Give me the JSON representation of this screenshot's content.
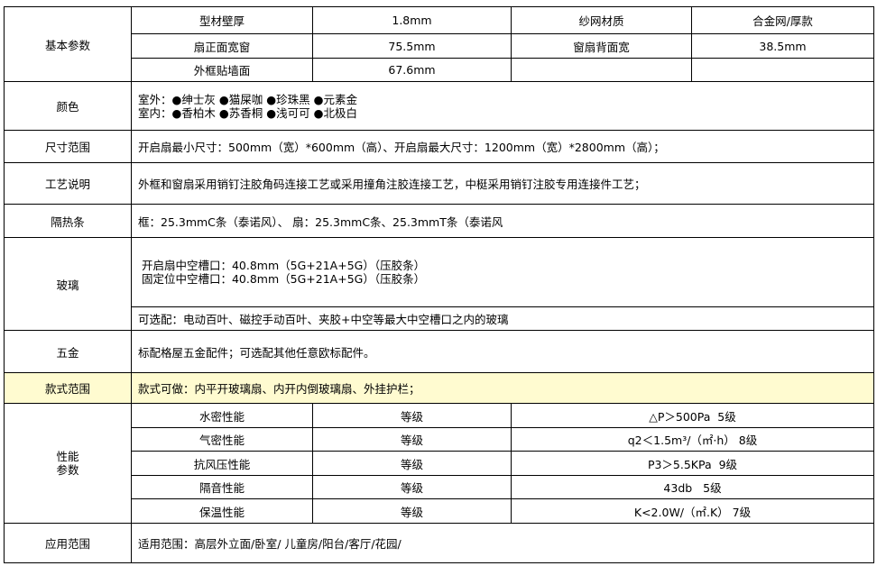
{
  "basic": {
    "label": "基本参数",
    "rows": [
      [
        "型材壁厚",
        "1.8mm",
        "纱网材质",
        "合金网/厚款"
      ],
      [
        "扇正面宽窗",
        "75.5mm",
        "窗扇背面宽",
        "38.5mm"
      ],
      [
        "外框贴墙面",
        "67.6mm",
        "",
        ""
      ]
    ]
  },
  "color": {
    "label": "颜色",
    "outdoor": "室外：●绅士灰  ●猫屎咖  ●珍珠黑  ●元素金",
    "indoor": "室内：●香柏木  ●苏香桐  ●浅可可  ●北极白"
  },
  "size": {
    "label": "尺寸范围",
    "value": "开启扇最小尺寸：500mm（宽）*600mm（高）、开启扇最大尺寸：1200mm（宽）*2800mm（高）；"
  },
  "craft": {
    "label": "工艺说明",
    "value": "外框和窗扇采用销钉注胶角码连接工艺或采用撞角注胶连接工艺，中梃采用销钉注胶专用连接件工艺；"
  },
  "strip": {
    "label": "隔热条",
    "value": "框：25.3mmC条（泰诺风）、 扇：25.3mmC条、25.3mmT条（泰诺风"
  },
  "glass": {
    "label": "玻璃",
    "line1": " 开启扇中空槽口：40.8mm（5G+21A+5G）（压胶条）",
    "line2": " 固定位中空槽口：40.8mm（5G+21A+5G）（压胶条）",
    "optional": "可选配：电动百叶、磁控手动百叶、夹胶+中空等最大中空槽口之内的玻璃"
  },
  "hardware": {
    "label": "五金",
    "value": "标配格屋五金配件；可选配其他任意欧标配件。"
  },
  "style": {
    "label": "款式范围",
    "value": "款式可做：内平开玻璃扇、内开内倒玻璃扇、外挂护栏；",
    "highlight": "#fffbd0"
  },
  "performance": {
    "label1": "性能",
    "label2": "参数",
    "rows": [
      [
        "水密性能",
        "等级",
        "△P＞500Pa  5级"
      ],
      [
        "气密性能",
        "等级",
        "q2＜1.5m³/（㎡·h） 8级"
      ],
      [
        "抗风压性能",
        "等级",
        "P3＞5.5KPa  9级"
      ],
      [
        "隔音性能",
        "等级",
        "43db   5级"
      ],
      [
        "保温性能",
        "等级",
        "K<2.0W/（㎡.K） 7级"
      ]
    ]
  },
  "application": {
    "label": "应用范围",
    "value": "适用范围：高层外立面/卧室/ 儿童房/阳台/客厅/花园/"
  }
}
